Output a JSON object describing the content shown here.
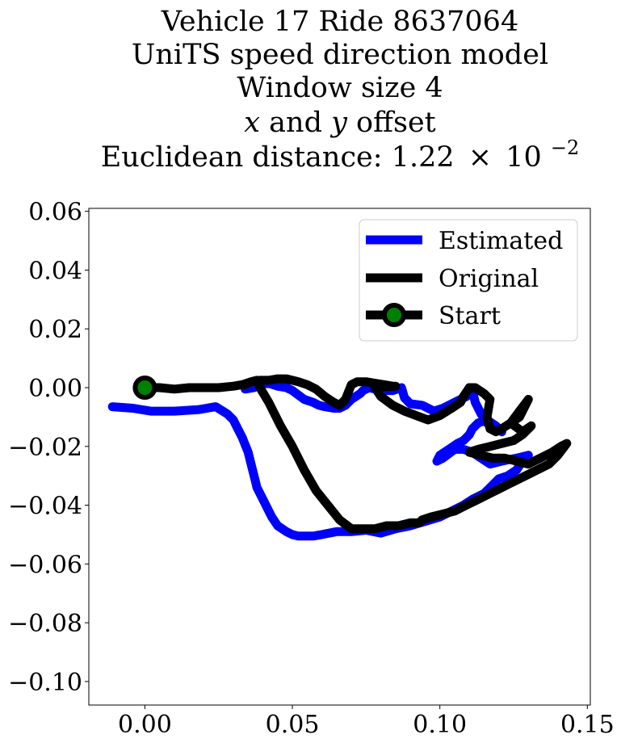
{
  "chart_data": {
    "type": "line",
    "title_lines": [
      "Vehicle 17 Ride 8637064",
      "UniTS speed direction model",
      "Window size 4",
      {
        "var_x": "x",
        "mid": "and",
        "var_y": "y",
        "tail": "offset"
      },
      {
        "prefix": "Euclidean distance: 1.22",
        "times": "×",
        "base": "10",
        "exponent": "−2"
      }
    ],
    "xlim": [
      -0.019,
      0.151
    ],
    "ylim": [
      -0.108,
      0.061
    ],
    "x_ticks": [
      {
        "value": 0.0,
        "label": "0.00"
      },
      {
        "value": 0.05,
        "label": "0.05"
      },
      {
        "value": 0.1,
        "label": "0.10"
      },
      {
        "value": 0.15,
        "label": "0.15"
      }
    ],
    "y_ticks": [
      {
        "value": 0.06,
        "label": "0.06"
      },
      {
        "value": 0.04,
        "label": "0.04"
      },
      {
        "value": 0.02,
        "label": "0.02"
      },
      {
        "value": 0.0,
        "label": "0.00"
      },
      {
        "value": -0.02,
        "label": "−0.02"
      },
      {
        "value": -0.04,
        "label": "−0.04"
      },
      {
        "value": -0.06,
        "label": "−0.06"
      },
      {
        "value": -0.08,
        "label": "−0.08"
      },
      {
        "value": -0.1,
        "label": "−0.10"
      }
    ],
    "legend_placement": "upper-right",
    "series": [
      {
        "name": "Estimated",
        "color": "#0000ff",
        "x": [
          -0.011,
          -0.004,
          0.002,
          0.01,
          0.018,
          0.024,
          0.028,
          0.03,
          0.031,
          0.033,
          0.035,
          0.036,
          0.037,
          0.038,
          0.039,
          0.041,
          0.043,
          0.045,
          0.048,
          0.05,
          0.052,
          0.054,
          0.057,
          0.06,
          0.065,
          0.07,
          0.075,
          0.08,
          0.085,
          0.09,
          0.095,
          0.1,
          0.104,
          0.108,
          0.111,
          0.115,
          0.118,
          0.12,
          0.123,
          0.126,
          0.128,
          0.13,
          0.126,
          0.121,
          0.117,
          0.114,
          0.111,
          0.108,
          0.105,
          0.103,
          0.101,
          0.099,
          0.1,
          0.103,
          0.106,
          0.108,
          0.11,
          0.111,
          0.113,
          0.116,
          0.119,
          0.121,
          0.119,
          0.116,
          0.114,
          0.112,
          0.111,
          0.11,
          0.111,
          0.109,
          0.105,
          0.101,
          0.098,
          0.094,
          0.09,
          0.088,
          0.087,
          0.084,
          0.082,
          0.079,
          0.078,
          0.076,
          0.074,
          0.073,
          0.07,
          0.068,
          0.066,
          0.064,
          0.061,
          0.059,
          0.057,
          0.054,
          0.052,
          0.05,
          0.048,
          0.045,
          0.042,
          0.039,
          0.037,
          0.034
        ],
        "y": [
          -0.0065,
          -0.007,
          -0.008,
          -0.008,
          -0.0075,
          -0.0065,
          -0.009,
          -0.011,
          -0.013,
          -0.017,
          -0.022,
          -0.026,
          -0.03,
          -0.034,
          -0.036,
          -0.04,
          -0.044,
          -0.047,
          -0.049,
          -0.05,
          -0.0505,
          -0.0505,
          -0.0505,
          -0.05,
          -0.049,
          -0.049,
          -0.0485,
          -0.0495,
          -0.048,
          -0.047,
          -0.0455,
          -0.044,
          -0.042,
          -0.04,
          -0.038,
          -0.036,
          -0.033,
          -0.031,
          -0.03,
          -0.028,
          -0.025,
          -0.023,
          -0.024,
          -0.025,
          -0.026,
          -0.024,
          -0.022,
          -0.021,
          -0.021,
          -0.0225,
          -0.024,
          -0.025,
          -0.023,
          -0.021,
          -0.019,
          -0.018,
          -0.016,
          -0.014,
          -0.012,
          -0.011,
          -0.013,
          -0.015,
          -0.014,
          -0.012,
          -0.009,
          -0.005,
          -0.001,
          0.0,
          -0.0015,
          -0.003,
          -0.005,
          -0.007,
          -0.008,
          -0.006,
          -0.0055,
          -0.0035,
          0.0,
          -0.001,
          -0.001,
          0.0,
          -0.0005,
          0.0,
          -0.001,
          -0.002,
          -0.004,
          -0.006,
          -0.007,
          -0.007,
          -0.0065,
          -0.006,
          -0.005,
          -0.004,
          -0.0025,
          -0.001,
          0.0,
          0.0005,
          0.0015,
          0.001,
          0.0,
          -0.0005
        ]
      },
      {
        "name": "Original",
        "color": "#000000",
        "x": [
          0.0,
          0.005,
          0.01,
          0.015,
          0.02,
          0.025,
          0.03,
          0.033,
          0.036,
          0.039,
          0.042,
          0.045,
          0.048,
          0.05,
          0.052,
          0.055,
          0.058,
          0.061,
          0.064,
          0.066,
          0.068,
          0.07,
          0.072,
          0.075,
          0.078,
          0.081,
          0.084,
          0.085,
          0.078,
          0.08,
          0.084,
          0.088,
          0.092,
          0.096,
          0.1,
          0.104,
          0.107,
          0.108,
          0.11,
          0.112,
          0.115,
          0.117,
          0.116,
          0.117,
          0.119,
          0.121,
          0.124,
          0.127,
          0.13,
          0.127,
          0.124,
          0.128,
          0.131,
          0.128,
          0.125,
          0.121,
          0.117,
          0.113,
          0.11,
          0.114,
          0.118,
          0.122,
          0.126,
          0.13,
          0.134,
          0.138,
          0.141,
          0.143,
          0.14,
          0.137,
          0.133,
          0.129,
          0.125,
          0.121,
          0.117,
          0.113,
          0.109,
          0.105,
          0.101,
          0.097,
          0.094,
          0.093,
          0.09,
          0.086,
          0.082,
          0.078,
          0.074,
          0.07,
          0.066,
          0.062,
          0.058,
          0.054,
          0.05,
          0.046,
          0.042,
          0.039,
          0.038,
          0.036,
          0.034
        ],
        "y": [
          0.0,
          0.0,
          -0.0005,
          0.0,
          0.0,
          0.0,
          0.0005,
          0.001,
          0.002,
          0.0025,
          0.0025,
          0.003,
          0.003,
          0.0025,
          0.002,
          0.001,
          -0.0005,
          -0.003,
          -0.005,
          -0.006,
          -0.004,
          0.001,
          0.002,
          0.002,
          0.0015,
          0.001,
          0.0005,
          0.0005,
          0.0,
          -0.003,
          -0.006,
          -0.008,
          -0.0095,
          -0.011,
          -0.0095,
          -0.007,
          -0.005,
          -0.003,
          0.0,
          0.0,
          -0.002,
          -0.004,
          -0.01,
          -0.014,
          -0.015,
          -0.014,
          -0.012,
          -0.008,
          -0.004,
          -0.01,
          -0.012,
          -0.015,
          -0.013,
          -0.016,
          -0.018,
          -0.019,
          -0.02,
          -0.021,
          -0.022,
          -0.023,
          -0.024,
          -0.024,
          -0.025,
          -0.026,
          -0.024,
          -0.022,
          -0.02,
          -0.019,
          -0.023,
          -0.026,
          -0.028,
          -0.03,
          -0.032,
          -0.034,
          -0.036,
          -0.038,
          -0.04,
          -0.042,
          -0.043,
          -0.044,
          -0.045,
          -0.046,
          -0.046,
          -0.047,
          -0.047,
          -0.048,
          -0.048,
          -0.048,
          -0.045,
          -0.04,
          -0.035,
          -0.028,
          -0.02,
          -0.013,
          -0.005,
          0.0,
          0.0025,
          0.002,
          0.001
        ]
      }
    ],
    "start": {
      "name": "Start",
      "x": 0.0,
      "y": 0.0,
      "line_color": "#000000",
      "marker_fill": "#008000",
      "marker_edge": "#000000"
    }
  }
}
